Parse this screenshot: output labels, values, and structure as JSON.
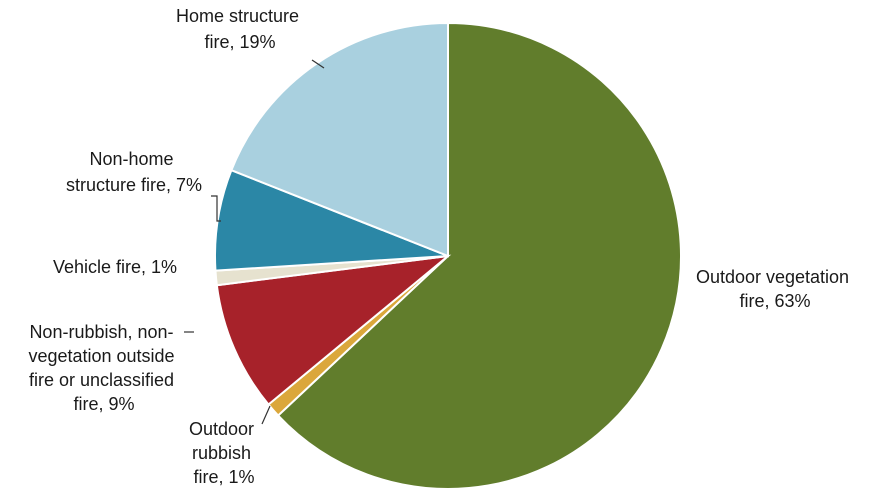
{
  "chart_data": {
    "type": "pie",
    "title": "",
    "start_angle_deg": 0,
    "direction": "clockwise",
    "slices": [
      {
        "label_lines": [
          "Outdoor vegetation",
          "fire, 63%"
        ],
        "value": 63,
        "color": "#617d2c"
      },
      {
        "label_lines": [
          "Outdoor",
          "rubbish",
          "fire, 1%"
        ],
        "value": 1,
        "color": "#dba73b"
      },
      {
        "label_lines": [
          "Non-rubbish, non-",
          "vegetation outside",
          "fire or unclassified",
          "fire, 9%"
        ],
        "value": 9,
        "color": "#a7222a"
      },
      {
        "label_lines": [
          "Vehicle fire, 1%"
        ],
        "value": 1,
        "color": "#e6e2cf"
      },
      {
        "label_lines": [
          "Non-home",
          "structure fire, 7%"
        ],
        "value": 7,
        "color": "#2b87a6"
      },
      {
        "label_lines": [
          "Home structure",
          "fire, 19%"
        ],
        "value": 19,
        "color": "#a9d0df"
      }
    ]
  }
}
